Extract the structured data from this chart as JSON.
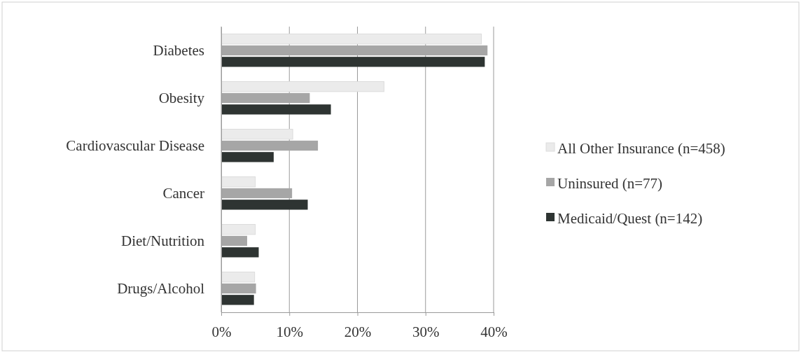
{
  "chart_data": {
    "type": "bar",
    "orientation": "horizontal",
    "categories": [
      "Diabetes",
      "Obesity",
      "Cardiovascular Disease",
      "Cancer",
      "Diet/Nutrition",
      "Drugs/Alcohol"
    ],
    "series": [
      {
        "name": "All Other Insurance (n=458)",
        "color": "#ebebeb",
        "values": [
          38.2,
          23.9,
          10.5,
          5.0,
          5.0,
          4.9
        ]
      },
      {
        "name": "Uninsured (n=77)",
        "color": "#a6a6a6",
        "values": [
          39.1,
          13.0,
          14.2,
          10.4,
          3.8,
          5.1
        ]
      },
      {
        "name": "Medicaid/Quest (n=142)",
        "color": "#2e3432",
        "values": [
          38.7,
          16.1,
          7.7,
          12.7,
          5.5,
          4.8
        ]
      }
    ],
    "xlim": [
      0,
      40
    ],
    "xticks": [
      {
        "value": 0,
        "label": "0%"
      },
      {
        "value": 10,
        "label": "10%"
      },
      {
        "value": 20,
        "label": "20%"
      },
      {
        "value": 30,
        "label": "30%"
      },
      {
        "value": 40,
        "label": "40%"
      }
    ],
    "grid": "x",
    "legend": "right"
  }
}
